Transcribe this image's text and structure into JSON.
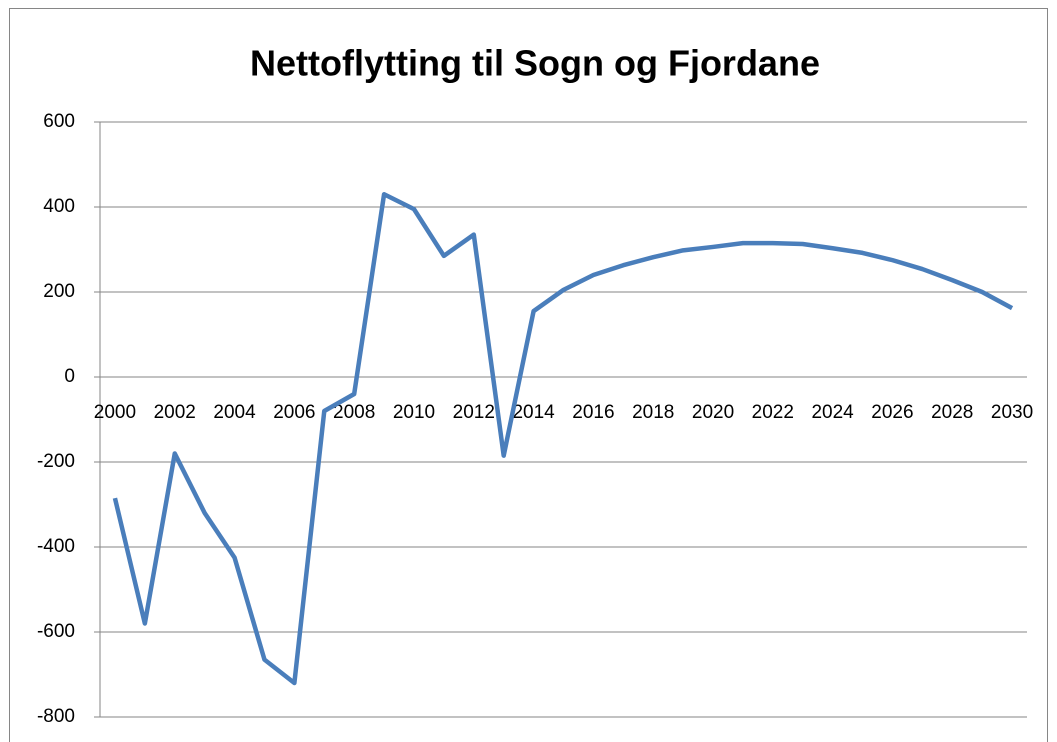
{
  "chart_data": {
    "type": "line",
    "title": "Nettoflytting til Sogn og Fjordane",
    "x": [
      2000,
      2001,
      2002,
      2003,
      2004,
      2005,
      2006,
      2007,
      2008,
      2009,
      2010,
      2011,
      2012,
      2013,
      2014,
      2015,
      2016,
      2017,
      2018,
      2019,
      2020,
      2021,
      2022,
      2023,
      2024,
      2025,
      2026,
      2027,
      2028,
      2029,
      2030
    ],
    "series": [
      {
        "name": "Nettoflytting",
        "color": "#4a7ebb",
        "values": [
          -285,
          -580,
          -180,
          -320,
          -425,
          -665,
          -720,
          -80,
          -40,
          430,
          395,
          285,
          335,
          -185,
          155,
          205,
          240,
          263,
          282,
          298,
          306,
          315,
          315,
          313,
          303,
          292,
          275,
          254,
          228,
          200,
          162
        ]
      }
    ],
    "xlim": [
      1999.5,
      2030.5
    ],
    "xticks": [
      2000,
      2002,
      2004,
      2006,
      2008,
      2010,
      2012,
      2014,
      2016,
      2018,
      2020,
      2022,
      2024,
      2026,
      2028,
      2030
    ],
    "ylim": [
      -800,
      600
    ],
    "yticks": [
      -800,
      -600,
      -400,
      -200,
      0,
      200,
      400,
      600
    ],
    "grid": true
  }
}
